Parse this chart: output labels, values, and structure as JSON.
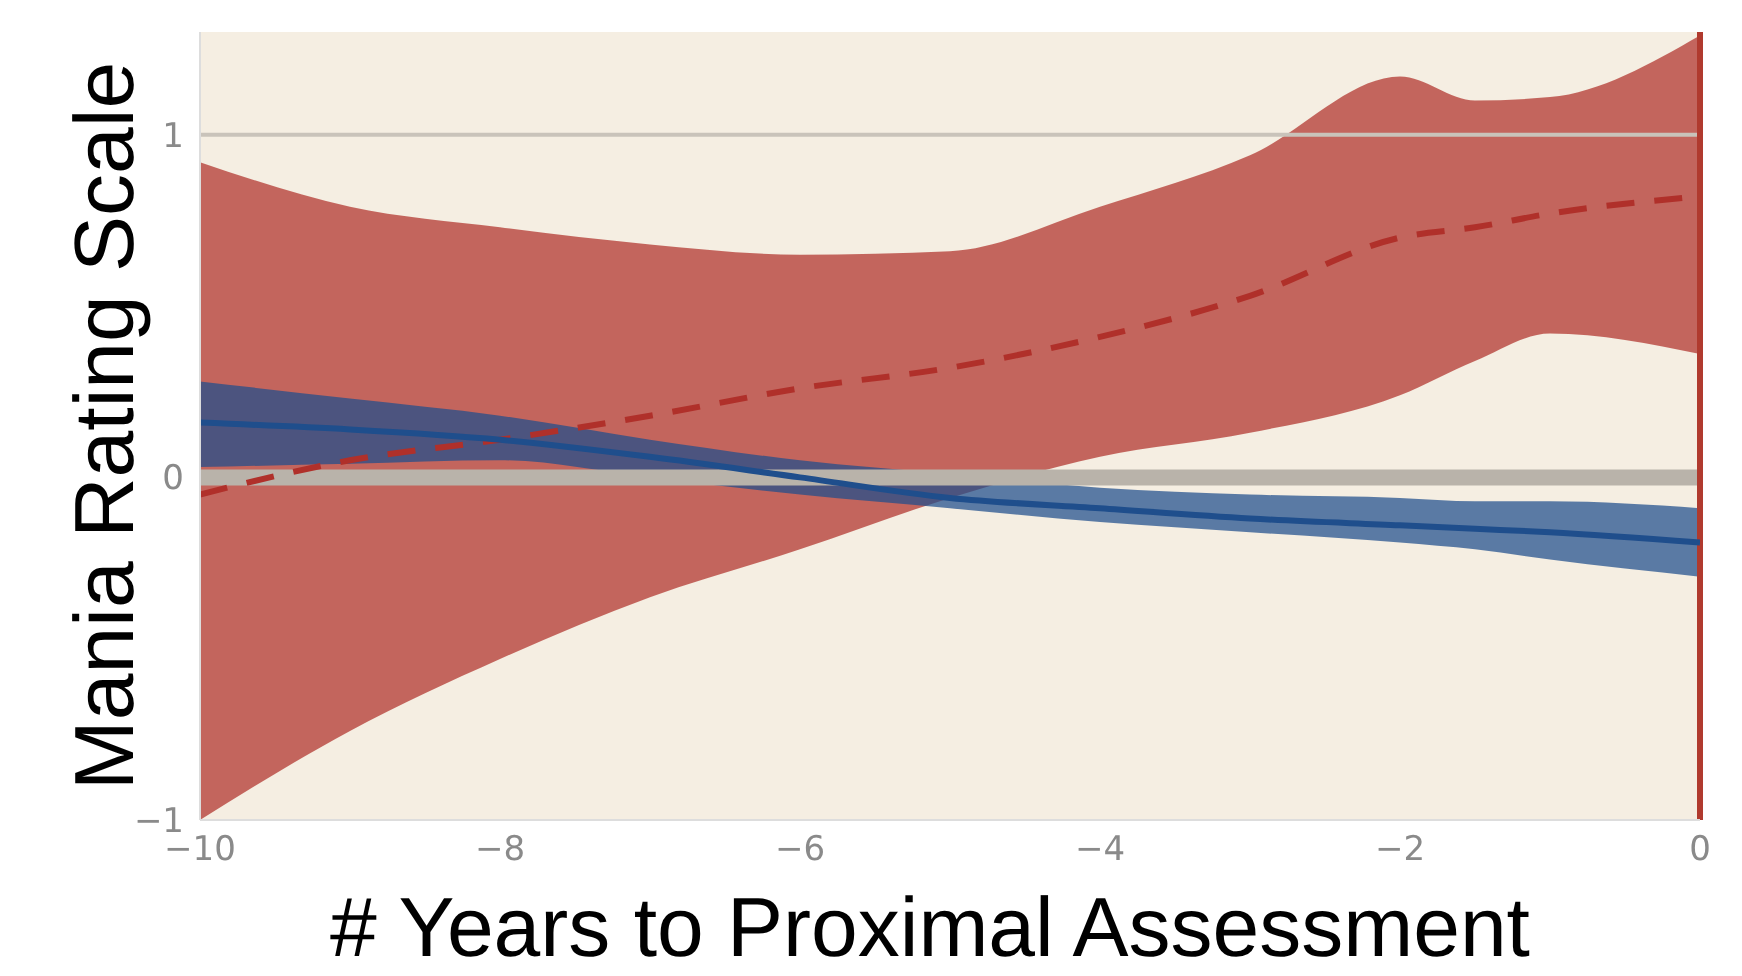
{
  "chart_data": {
    "type": "line",
    "xlabel": "# Years to Proximal Assessment",
    "ylabel": "Mania Rating Scale",
    "xlim": [
      -10,
      0
    ],
    "xticks": [
      -10,
      -8,
      -6,
      -4,
      -2,
      0
    ],
    "ylim": [
      -1,
      1.3
    ],
    "yticks": [
      -1,
      0,
      1
    ],
    "ref_lines": [
      {
        "axis": "y",
        "value": 0,
        "color": "#b9b3aa"
      },
      {
        "axis": "y",
        "value": 1,
        "color": "#c9c3ba"
      },
      {
        "axis": "x",
        "value": 0,
        "color": "#b03a2e"
      }
    ],
    "series": [
      {
        "color": "#b0302a",
        "line_style": "dashed",
        "x": [
          -10,
          -9,
          -8,
          -7,
          -6,
          -5,
          -4,
          -3,
          -2,
          -1.5,
          -1,
          0
        ],
        "values": [
          -0.05,
          0.05,
          0.11,
          0.18,
          0.26,
          0.32,
          0.41,
          0.53,
          0.7,
          0.73,
          0.77,
          0.82
        ],
        "lower": [
          -1,
          -0.74,
          -0.53,
          -0.35,
          -0.21,
          -0.06,
          0.06,
          0.13,
          0.24,
          0.34,
          0.42,
          0.36
        ],
        "upper": [
          0.92,
          0.79,
          0.73,
          0.68,
          0.65,
          0.66,
          0.79,
          0.94,
          1.17,
          1.1,
          1.11,
          1.29
        ]
      },
      {
        "color": "#1f4e8c",
        "line_style": "solid",
        "x": [
          -10,
          -9,
          -8,
          -7,
          -6,
          -5,
          -4,
          -3,
          -2,
          -1.5,
          -1,
          0
        ],
        "values": [
          0.16,
          0.14,
          0.11,
          0.06,
          0,
          -0.06,
          -0.09,
          -0.12,
          -0.14,
          -0.15,
          -0.16,
          -0.19
        ],
        "lower": [
          0.03,
          0.04,
          0.05,
          0,
          -0.05,
          -0.09,
          -0.13,
          -0.16,
          -0.19,
          -0.21,
          -0.24,
          -0.29
        ],
        "upper": [
          0.28,
          0.23,
          0.18,
          0.11,
          0.05,
          0.01,
          -0.03,
          -0.05,
          -0.06,
          -0.07,
          -0.07,
          -0.09
        ]
      }
    ]
  }
}
